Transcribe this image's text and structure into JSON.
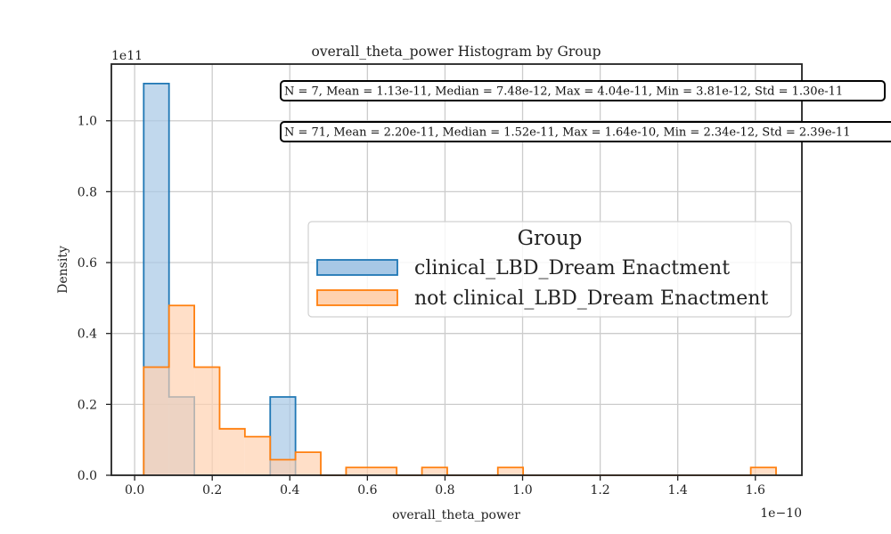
{
  "chart_data": {
    "type": "histogram",
    "title": "overall_theta_power Histogram by Group",
    "xlabel": "overall_theta_power",
    "ylabel": "Density",
    "x_offset_label": "1e−10",
    "y_offset_label": "1e11",
    "xlim": [
      -0.06,
      1.72
    ],
    "ylim": [
      0,
      1.16
    ],
    "x_ticks": [
      0.0,
      0.2,
      0.4,
      0.6,
      0.8,
      1.0,
      1.2,
      1.4,
      1.6
    ],
    "x_tick_labels": [
      "0.0",
      "0.2",
      "0.4",
      "0.6",
      "0.8",
      "1.0",
      "1.2",
      "1.4",
      "1.6"
    ],
    "y_ticks": [
      0.0,
      0.2,
      0.4,
      0.6,
      0.8,
      1.0
    ],
    "y_tick_labels": [
      "0.0",
      "0.2",
      "0.4",
      "0.6",
      "0.8",
      "1.0"
    ],
    "grid": true,
    "legend_placement": "center-right",
    "legend_title": "Group",
    "series": [
      {
        "name": "clinical_LBD_Dream Enactment",
        "stroke": "#1f77b4",
        "fill": "#a7c8e6",
        "bins": [
          {
            "x0": 0.0234,
            "x1": 0.0886,
            "density": 1.105
          },
          {
            "x0": 0.0886,
            "x1": 0.1538,
            "density": 0.221
          },
          {
            "x0": 0.1538,
            "x1": 0.3494,
            "density": 0.0
          },
          {
            "x0": 0.3494,
            "x1": 0.4146,
            "density": 0.221
          }
        ],
        "stats": "N = 7, Mean = 1.13e-11, Median = 7.48e-12, Max = 4.04e-11, Min = 3.81e-12, Std = 1.30e-11"
      },
      {
        "name": "not clinical_LBD_Dream Enactment",
        "stroke": "#ff7f0e",
        "fill": "#ffd2b0",
        "bins": [
          {
            "x0": 0.0234,
            "x1": 0.0886,
            "density": 0.305
          },
          {
            "x0": 0.0886,
            "x1": 0.1538,
            "density": 0.479
          },
          {
            "x0": 0.1538,
            "x1": 0.219,
            "density": 0.305
          },
          {
            "x0": 0.219,
            "x1": 0.2842,
            "density": 0.131
          },
          {
            "x0": 0.2842,
            "x1": 0.3494,
            "density": 0.109
          },
          {
            "x0": 0.3494,
            "x1": 0.4146,
            "density": 0.044
          },
          {
            "x0": 0.4146,
            "x1": 0.4798,
            "density": 0.065
          },
          {
            "x0": 0.4798,
            "x1": 0.545,
            "density": 0.0
          },
          {
            "x0": 0.545,
            "x1": 0.6754,
            "density": 0.022
          },
          {
            "x0": 0.6754,
            "x1": 0.7406,
            "density": 0.0
          },
          {
            "x0": 0.7406,
            "x1": 0.8058,
            "density": 0.022
          },
          {
            "x0": 0.8058,
            "x1": 0.9362,
            "density": 0.0
          },
          {
            "x0": 0.9362,
            "x1": 1.0014,
            "density": 0.022
          },
          {
            "x0": 1.0014,
            "x1": 1.5882,
            "density": 0.0
          },
          {
            "x0": 1.5882,
            "x1": 1.6534,
            "density": 0.022
          }
        ],
        "stats": "N = 71, Mean = 2.20e-11, Median = 1.52e-11, Max = 1.64e-10, Min = 2.34e-12, Std = 2.39e-11"
      }
    ]
  }
}
